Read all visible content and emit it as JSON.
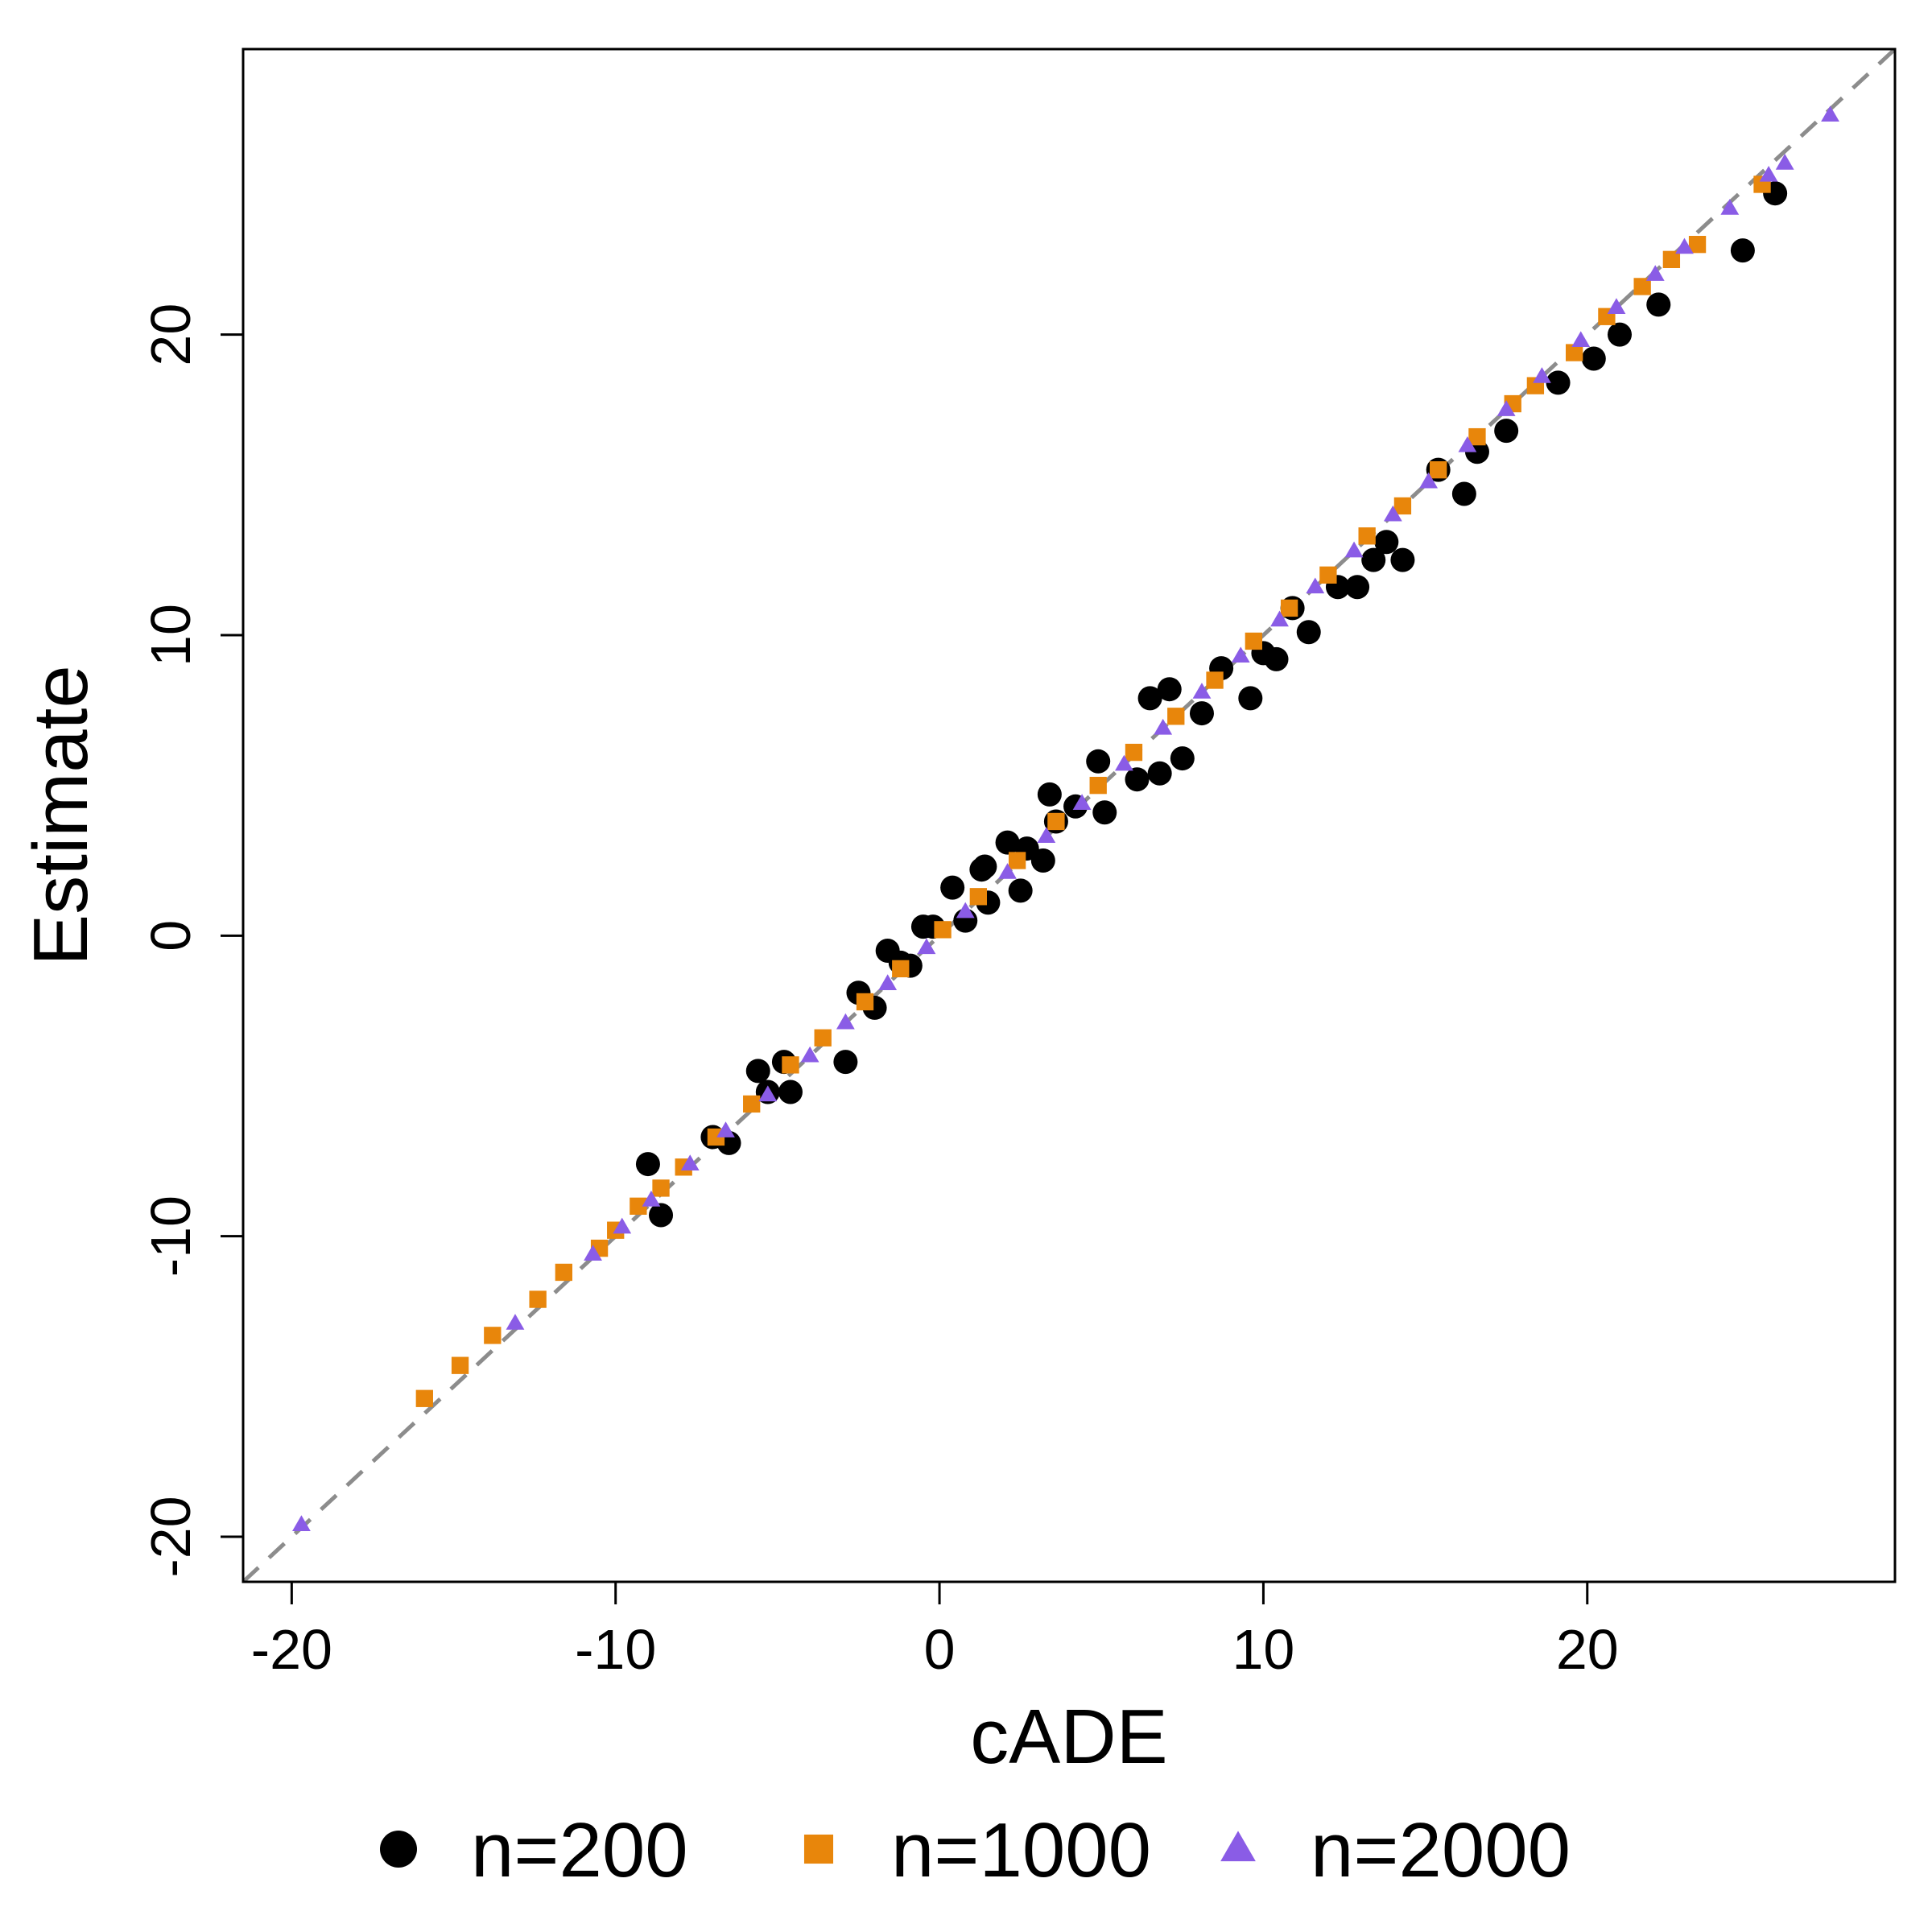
{
  "chart_data": {
    "type": "scatter",
    "title": "",
    "xlabel": "cADE",
    "ylabel": "Estimate",
    "xlim": [
      -21.5,
      29.5
    ],
    "ylim": [
      -21.5,
      29.5
    ],
    "xticks": [
      -20,
      -10,
      0,
      10,
      20
    ],
    "yticks": [
      -20,
      -10,
      0,
      10,
      20
    ],
    "grid": false,
    "legend_position": "bottom",
    "reference_line": {
      "slope": 1,
      "intercept": 0,
      "style": "dashed",
      "color": "#8c8c8c"
    },
    "series": [
      {
        "name": "n=200",
        "marker": "circle",
        "color": "#000000",
        "x": [
          -9.0,
          -8.6,
          -7.0,
          -6.5,
          -5.6,
          -5.3,
          -4.8,
          -4.6,
          -2.9,
          -2.5,
          -2.0,
          -1.6,
          -1.2,
          -0.9,
          -0.5,
          -0.2,
          0.4,
          0.8,
          1.3,
          1.5,
          1.4,
          2.1,
          2.5,
          2.7,
          3.2,
          3.4,
          3.6,
          4.2,
          4.9,
          5.1,
          6.1,
          6.5,
          6.8,
          7.1,
          7.5,
          8.1,
          8.7,
          9.6,
          10.0,
          10.4,
          10.9,
          11.4,
          12.3,
          12.9,
          13.4,
          13.8,
          14.3,
          15.4,
          16.2,
          16.6,
          17.5,
          19.1,
          20.2,
          21.0,
          22.2,
          24.8,
          25.8
        ],
        "y": [
          -7.6,
          -9.3,
          -6.7,
          -6.9,
          -4.5,
          -5.2,
          -4.2,
          -5.2,
          -4.2,
          -1.9,
          -2.4,
          -0.5,
          -0.9,
          -1.0,
          0.3,
          0.3,
          1.6,
          0.5,
          2.2,
          1.1,
          2.3,
          3.1,
          1.5,
          2.9,
          2.5,
          4.7,
          3.8,
          4.3,
          5.8,
          4.1,
          5.2,
          7.9,
          5.4,
          8.2,
          5.9,
          7.4,
          8.9,
          7.9,
          9.4,
          9.2,
          10.9,
          10.1,
          11.6,
          11.6,
          12.5,
          13.1,
          12.5,
          15.5,
          14.7,
          16.1,
          16.8,
          18.4,
          19.2,
          20.0,
          21.0,
          22.8,
          24.7
        ]
      },
      {
        "name": "n=1000",
        "marker": "square",
        "color": "#e8860b",
        "x": [
          -15.9,
          -14.8,
          -13.8,
          -12.4,
          -11.6,
          -10.5,
          -10.0,
          -9.3,
          -8.6,
          -7.9,
          -6.9,
          -5.8,
          -4.6,
          -3.6,
          -2.3,
          -1.2,
          0.1,
          1.2,
          2.4,
          3.6,
          4.9,
          6.0,
          7.3,
          8.5,
          9.7,
          10.8,
          12.0,
          13.2,
          14.3,
          15.4,
          16.6,
          17.7,
          18.4,
          19.6,
          20.6,
          21.7,
          22.6,
          23.4,
          25.4
        ],
        "y": [
          -15.4,
          -14.3,
          -13.3,
          -12.1,
          -11.2,
          -10.4,
          -9.8,
          -9.0,
          -8.4,
          -7.7,
          -6.7,
          -5.6,
          -4.3,
          -3.4,
          -2.2,
          -1.1,
          0.2,
          1.3,
          2.5,
          3.8,
          5.0,
          6.1,
          7.3,
          8.5,
          9.8,
          10.9,
          12.0,
          13.3,
          14.3,
          15.5,
          16.6,
          17.7,
          18.3,
          19.4,
          20.6,
          21.6,
          22.5,
          23.0,
          25.0
        ]
      },
      {
        "name": "n=2000",
        "marker": "triangle",
        "color": "#8a5ce6",
        "x": [
          -19.7,
          -13.1,
          -10.7,
          -9.8,
          -8.9,
          -7.7,
          -6.6,
          -5.3,
          -4.0,
          -2.9,
          -1.6,
          -0.4,
          0.8,
          2.1,
          3.3,
          4.4,
          5.7,
          6.9,
          8.1,
          9.3,
          10.5,
          11.6,
          12.8,
          14.0,
          15.1,
          16.3,
          17.5,
          18.6,
          19.8,
          20.9,
          22.1,
          23.0,
          24.4,
          25.6,
          26.1,
          27.5
        ],
        "y": [
          -19.6,
          -12.9,
          -10.6,
          -9.7,
          -8.8,
          -7.6,
          -6.5,
          -5.3,
          -4.0,
          -2.9,
          -1.6,
          -0.4,
          0.8,
          2.1,
          3.3,
          4.4,
          5.7,
          6.9,
          8.1,
          9.3,
          10.5,
          11.6,
          12.8,
          14.0,
          15.1,
          16.3,
          17.5,
          18.6,
          19.8,
          20.9,
          22.0,
          22.9,
          24.2,
          25.3,
          25.7,
          27.3
        ]
      }
    ]
  }
}
